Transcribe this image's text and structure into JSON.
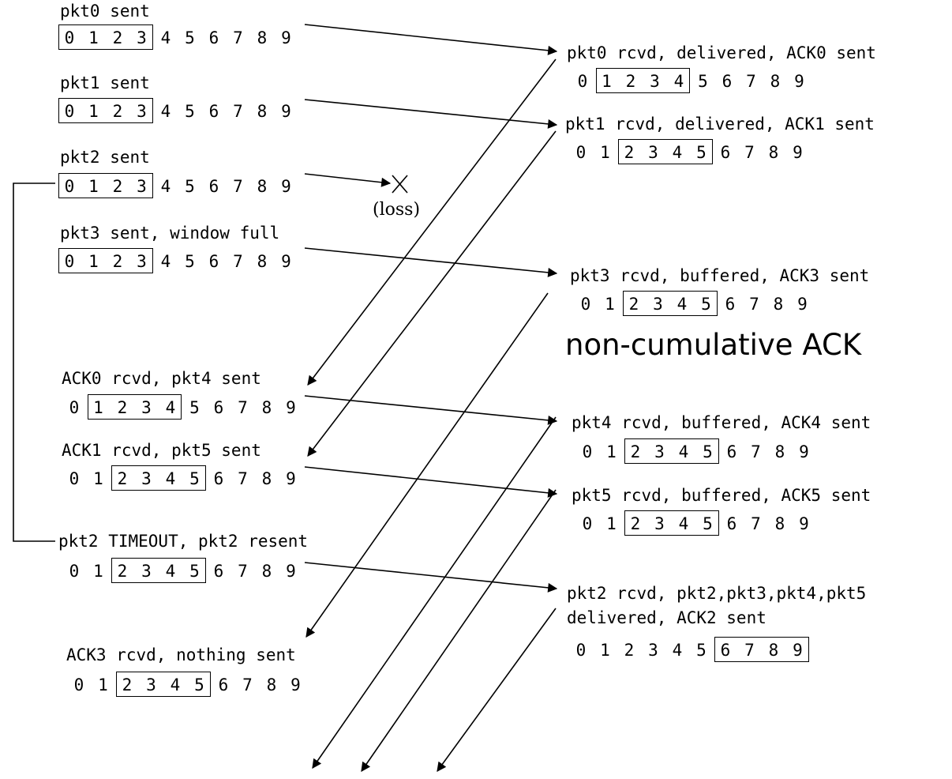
{
  "annotation": "non-cumulative ACK",
  "loss_label": "(loss)",
  "sender": [
    {
      "label": "pkt0 sent",
      "seq": [
        "0",
        "1",
        "2",
        "3",
        "4",
        "5",
        "6",
        "7",
        "8",
        "9"
      ],
      "window": [
        0,
        3
      ]
    },
    {
      "label": "pkt1 sent",
      "seq": [
        "0",
        "1",
        "2",
        "3",
        "4",
        "5",
        "6",
        "7",
        "8",
        "9"
      ],
      "window": [
        0,
        3
      ]
    },
    {
      "label": "pkt2 sent",
      "seq": [
        "0",
        "1",
        "2",
        "3",
        "4",
        "5",
        "6",
        "7",
        "8",
        "9"
      ],
      "window": [
        0,
        3
      ]
    },
    {
      "label": "pkt3 sent, window full",
      "seq": [
        "0",
        "1",
        "2",
        "3",
        "4",
        "5",
        "6",
        "7",
        "8",
        "9"
      ],
      "window": [
        0,
        3
      ]
    },
    {
      "label": "ACK0 rcvd, pkt4 sent",
      "seq": [
        "0",
        "1",
        "2",
        "3",
        "4",
        "5",
        "6",
        "7",
        "8",
        "9"
      ],
      "window": [
        1,
        4
      ]
    },
    {
      "label": "ACK1 rcvd, pkt5 sent",
      "seq": [
        "0",
        "1",
        "2",
        "3",
        "4",
        "5",
        "6",
        "7",
        "8",
        "9"
      ],
      "window": [
        2,
        5
      ]
    },
    {
      "label": "pkt2 TIMEOUT, pkt2 resent",
      "seq": [
        "0",
        "1",
        "2",
        "3",
        "4",
        "5",
        "6",
        "7",
        "8",
        "9"
      ],
      "window": [
        2,
        5
      ]
    },
    {
      "label": "ACK3 rcvd, nothing sent",
      "seq": [
        "0",
        "1",
        "2",
        "3",
        "4",
        "5",
        "6",
        "7",
        "8",
        "9"
      ],
      "window": [
        2,
        5
      ]
    }
  ],
  "receiver": [
    {
      "label": "pkt0 rcvd, delivered, ACK0 sent",
      "seq": [
        "0",
        "1",
        "2",
        "3",
        "4",
        "5",
        "6",
        "7",
        "8",
        "9"
      ],
      "window": [
        1,
        4
      ]
    },
    {
      "label": "pkt1 rcvd, delivered, ACK1 sent",
      "seq": [
        "0",
        "1",
        "2",
        "3",
        "4",
        "5",
        "6",
        "7",
        "8",
        "9"
      ],
      "window": [
        2,
        5
      ]
    },
    {
      "label": "pkt3 rcvd, buffered, ACK3 sent",
      "seq": [
        "0",
        "1",
        "2",
        "3",
        "4",
        "5",
        "6",
        "7",
        "8",
        "9"
      ],
      "window": [
        2,
        5
      ]
    },
    {
      "label": "pkt4 rcvd, buffered, ACK4 sent",
      "seq": [
        "0",
        "1",
        "2",
        "3",
        "4",
        "5",
        "6",
        "7",
        "8",
        "9"
      ],
      "window": [
        2,
        5
      ]
    },
    {
      "label": "pkt5 rcvd, buffered, ACK5 sent",
      "seq": [
        "0",
        "1",
        "2",
        "3",
        "4",
        "5",
        "6",
        "7",
        "8",
        "9"
      ],
      "window": [
        2,
        5
      ]
    },
    {
      "label": "pkt2 rcvd, pkt2,pkt3,pkt4,pkt5",
      "label2": "delivered, ACK2 sent",
      "seq": [
        "0",
        "1",
        "2",
        "3",
        "4",
        "5",
        "6",
        "7",
        "8",
        "9"
      ],
      "window": [
        6,
        9
      ]
    }
  ]
}
